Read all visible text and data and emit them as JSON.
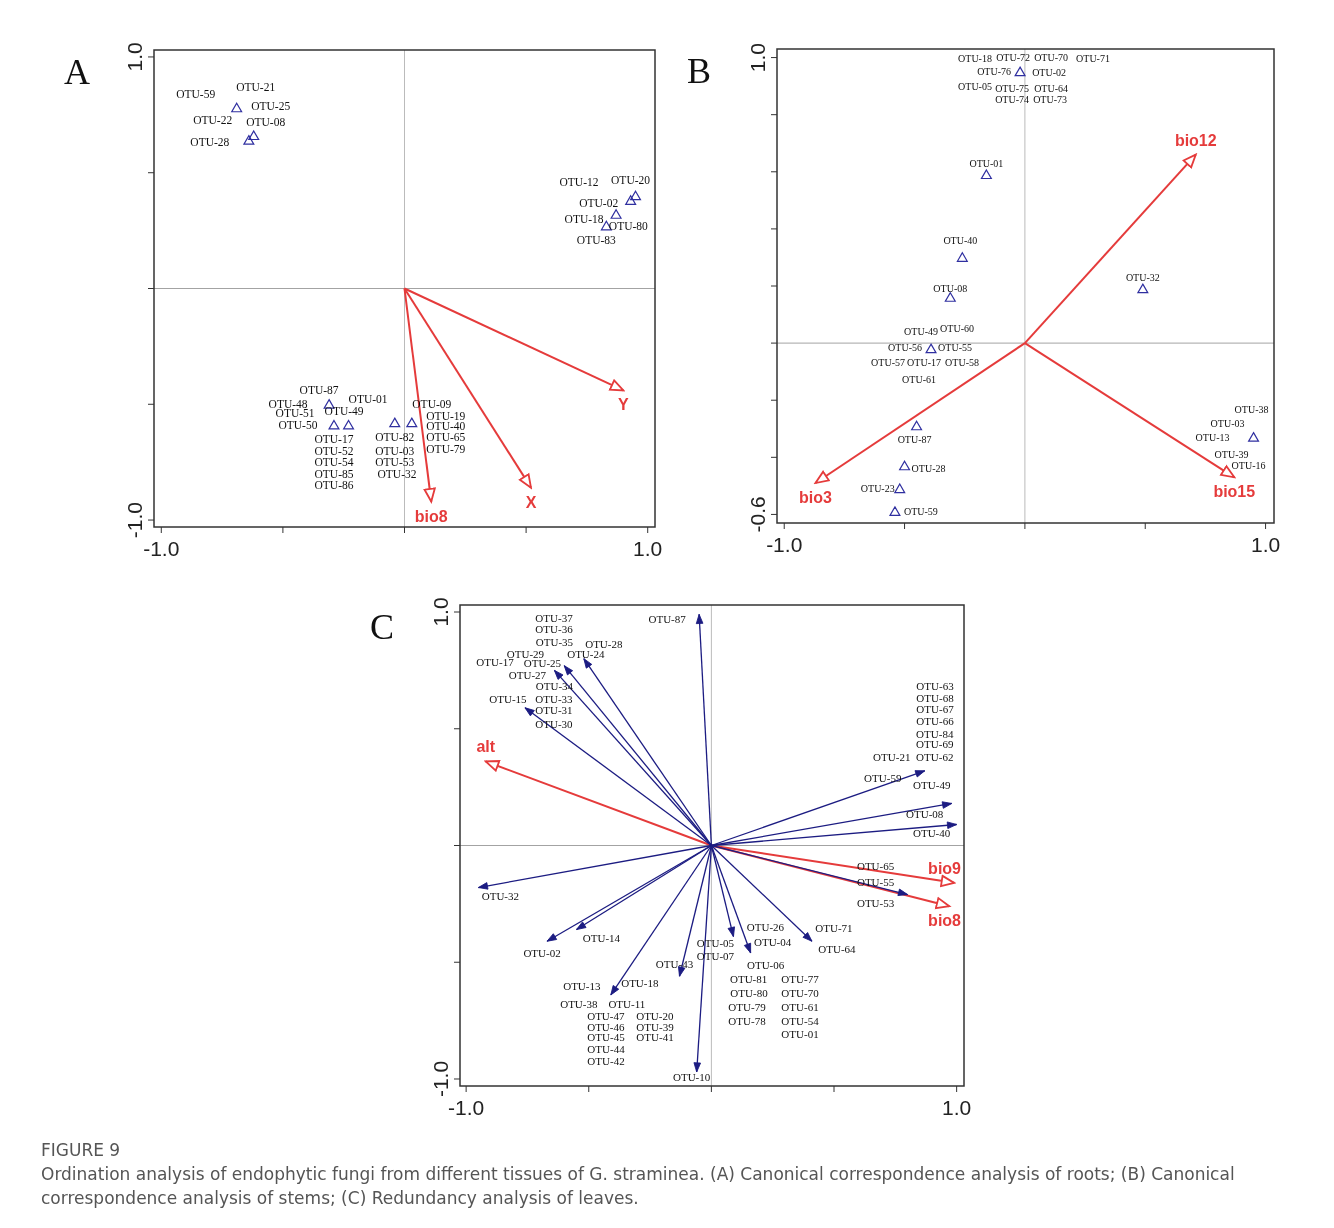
{
  "chart_data": [
    {
      "type": "scatter",
      "title": "A",
      "xlim": [
        -1.03,
        1.03
      ],
      "ylim": [
        -1.03,
        1.03
      ],
      "xticks": [
        {
          "value": -1,
          "label": "-1.0"
        },
        {
          "value": -0.5,
          "label": null
        },
        {
          "value": 0,
          "label": null
        },
        {
          "value": 0.5,
          "label": null
        },
        {
          "value": 1,
          "label": "1.0"
        }
      ],
      "yticks": [
        {
          "value": -1,
          "label": "-1.0"
        },
        {
          "value": -0.5,
          "label": null
        },
        {
          "value": 0,
          "label": null
        },
        {
          "value": 0.5,
          "label": null
        },
        {
          "value": 1,
          "label": "1.0"
        }
      ],
      "ref_lines": [
        {
          "axis": "x",
          "value": 0,
          "color": "#bbbbbb"
        },
        {
          "axis": "y",
          "value": 0,
          "color": "#a3a3a3"
        }
      ],
      "series": [
        {
          "marker": "triangle",
          "color": "#2f2fa0",
          "x": [
            -0.69,
            -0.62,
            -0.64,
            0.95,
            0.93,
            0.87,
            0.83,
            -0.31,
            -0.29,
            -0.23,
            -0.04,
            0.03
          ],
          "values": [
            0.78,
            0.66,
            0.64,
            0.4,
            0.38,
            0.32,
            0.27,
            -0.5,
            -0.59,
            -0.59,
            -0.58,
            -0.58
          ]
        },
        {
          "type": "line",
          "name": "Y",
          "color": "#e53b3b",
          "x": [
            0,
            0.9
          ],
          "values": [
            0,
            -0.44
          ]
        },
        {
          "type": "line",
          "name": "X",
          "color": "#e53b3b",
          "x": [
            0,
            0.52
          ],
          "values": [
            0,
            -0.86
          ]
        },
        {
          "type": "line",
          "name": "bio8",
          "color": "#e53b3b",
          "x": [
            0,
            0.11
          ],
          "values": [
            0,
            -0.92
          ]
        }
      ],
      "annotations": [
        {
          "text": "OTU-59",
          "x": -0.69,
          "y": 0.78
        },
        {
          "text": "OTU-21",
          "x": -0.69,
          "y": 0.78
        },
        {
          "text": "OTU-25",
          "x": -0.69,
          "y": 0.78
        },
        {
          "text": "OTU-22",
          "x": -0.69,
          "y": 0.78
        },
        {
          "text": "OTU-08",
          "x": -0.62,
          "y": 0.66
        },
        {
          "text": "OTU-28",
          "x": -0.64,
          "y": 0.64
        },
        "OTU-12",
        {
          "text": "OTU-20",
          "x": 0.95,
          "y": 0.4
        },
        {
          "text": "OTU-02",
          "x": 0.93,
          "y": 0.38
        },
        {
          "text": "OTU-18",
          "x": 0.87,
          "y": 0.32
        },
        {
          "text": "OTU-80",
          "x": 0.83,
          "y": 0.27
        },
        {
          "text": "OTU-83",
          "x": 0.83,
          "y": 0.27
        },
        {
          "text": "OTU-87",
          "x": -0.31,
          "y": -0.5
        },
        {
          "text": "OTU-48",
          "x": -0.31,
          "y": -0.5
        },
        {
          "text": "OTU-01",
          "x": -0.31,
          "y": -0.5
        },
        {
          "text": "OTU-51",
          "x": -0.31,
          "y": -0.5
        },
        {
          "text": "OTU-49",
          "x": -0.31,
          "y": -0.5
        },
        {
          "text": "OTU-50",
          "x": -0.29,
          "y": -0.59
        },
        {
          "text": "OTU-09",
          "x": 0.03,
          "y": -0.58
        },
        {
          "text": "OTU-19",
          "x": 0.03,
          "y": -0.58
        },
        {
          "text": "OTU-40",
          "x": 0.03,
          "y": -0.58
        },
        {
          "text": "OTU-82",
          "x": -0.04,
          "y": -0.58
        },
        {
          "text": "OTU-65",
          "x": 0.03,
          "y": -0.58
        },
        {
          "text": "OTU-17",
          "x": -0.29,
          "y": -0.59
        },
        {
          "text": "OTU-52",
          "x": -0.29,
          "y": -0.59
        },
        {
          "text": "OTU-03",
          "x": -0.04,
          "y": -0.58
        },
        {
          "text": "OTU-79",
          "x": 0.03,
          "y": -0.58
        },
        {
          "text": "OTU-54",
          "x": -0.29,
          "y": -0.59
        },
        {
          "text": "OTU-53",
          "x": -0.04,
          "y": -0.58
        },
        "OTU-85",
        "OTU-32",
        "OTU-86"
      ]
    },
    {
      "type": "scatter",
      "title": "B",
      "xlim": [
        -1.03,
        1.035
      ],
      "ylim": [
        -0.63,
        1.03
      ],
      "xticks": [
        {
          "value": -1,
          "label": "-1.0"
        },
        {
          "value": -0.5,
          "label": null
        },
        {
          "value": 0,
          "label": null
        },
        {
          "value": 0.5,
          "label": null
        },
        {
          "value": 1,
          "label": "1.0"
        }
      ],
      "yticks": [
        {
          "value": -0.6,
          "label": "-0.6"
        },
        {
          "value": -0.4,
          "label": null
        },
        {
          "value": -0.2,
          "label": null
        },
        {
          "value": 0,
          "label": null
        },
        {
          "value": 0.2,
          "label": null
        },
        {
          "value": 0.4,
          "label": null
        },
        {
          "value": 0.6,
          "label": null
        },
        {
          "value": 0.8,
          "label": null
        },
        {
          "value": 1,
          "label": "1.0"
        }
      ],
      "ref_lines": [
        {
          "axis": "x",
          "value": 0,
          "color": "#bbbbbb"
        },
        {
          "axis": "y",
          "value": 0,
          "color": "#a3a3a3"
        }
      ],
      "series": [
        {
          "marker": "triangle",
          "color": "#2f2fa0",
          "x": [
            -0.02,
            -0.16,
            -0.26,
            -0.31,
            0.49,
            -0.39,
            -0.45,
            0.95,
            -0.5,
            -0.52,
            -0.54
          ],
          "values": [
            0.95,
            0.59,
            0.3,
            0.16,
            0.19,
            -0.02,
            -0.29,
            -0.33,
            -0.43,
            -0.51,
            -0.59
          ]
        },
        {
          "type": "line",
          "name": "bio12",
          "color": "#e53b3b",
          "x": [
            0,
            0.71
          ],
          "values": [
            0,
            0.66
          ]
        },
        {
          "type": "line",
          "name": "bio3",
          "color": "#e53b3b",
          "x": [
            0,
            -0.87
          ],
          "values": [
            0,
            -0.49
          ]
        },
        {
          "type": "line",
          "name": "bio15",
          "color": "#e53b3b",
          "x": [
            0,
            0.87
          ],
          "values": [
            0,
            -0.47
          ]
        }
      ],
      "annotations": [
        "OTU-18",
        {
          "text": "OTU-72",
          "x": -0.02,
          "y": 0.95
        },
        {
          "text": "OTU-70",
          "x": -0.02,
          "y": 0.95
        },
        "OTU-71",
        {
          "text": "OTU-76",
          "x": -0.02,
          "y": 0.95
        },
        {
          "text": "OTU-02",
          "x": -0.02,
          "y": 0.95
        },
        "OTU-05",
        {
          "text": "OTU-75",
          "x": -0.02,
          "y": 0.95
        },
        {
          "text": "OTU-64",
          "x": -0.02,
          "y": 0.95
        },
        {
          "text": "OTU-74",
          "x": -0.02,
          "y": 0.95
        },
        {
          "text": "OTU-73",
          "x": -0.02,
          "y": 0.95
        },
        {
          "text": "OTU-01",
          "x": -0.16,
          "y": 0.59
        },
        {
          "text": "OTU-40",
          "x": -0.26,
          "y": 0.3
        },
        {
          "text": "OTU-32",
          "x": 0.49,
          "y": 0.19
        },
        {
          "text": "OTU-08",
          "x": -0.31,
          "y": 0.16
        },
        {
          "text": "OTU-49",
          "x": -0.39,
          "y": -0.02
        },
        {
          "text": "OTU-60",
          "x": -0.39,
          "y": -0.02
        },
        {
          "text": "OTU-56",
          "x": -0.39,
          "y": -0.02
        },
        {
          "text": "OTU-55",
          "x": -0.39,
          "y": -0.02
        },
        {
          "text": "OTU-57",
          "x": -0.39,
          "y": -0.02
        },
        {
          "text": "OTU-17",
          "x": -0.39,
          "y": -0.02
        },
        {
          "text": "OTU-58",
          "x": -0.39,
          "y": -0.02
        },
        {
          "text": "OTU-61",
          "x": -0.39,
          "y": -0.02
        },
        {
          "text": "OTU-87",
          "x": -0.45,
          "y": -0.29
        },
        {
          "text": "OTU-28",
          "x": -0.5,
          "y": -0.43
        },
        {
          "text": "OTU-23",
          "x": -0.52,
          "y": -0.51
        },
        {
          "text": "OTU-59",
          "x": -0.54,
          "y": -0.59
        },
        {
          "text": "OTU-38",
          "x": 0.95,
          "y": -0.33
        },
        {
          "text": "OTU-03",
          "x": 0.95,
          "y": -0.33
        },
        {
          "text": "OTU-13",
          "x": 0.95,
          "y": -0.33
        },
        {
          "text": "OTU-39",
          "x": 0.95,
          "y": -0.33
        },
        {
          "text": "OTU-16",
          "x": 0.95,
          "y": -0.33
        }
      ]
    },
    {
      "type": "line",
      "title": "C",
      "xlim": [
        -1.025,
        1.03
      ],
      "ylim": [
        -1.03,
        1.03
      ],
      "xticks": [
        {
          "value": -1,
          "label": "-1.0"
        },
        {
          "value": -0.5,
          "label": null
        },
        {
          "value": 0,
          "label": null
        },
        {
          "value": 0.5,
          "label": null
        },
        {
          "value": 1,
          "label": "1.0"
        }
      ],
      "yticks": [
        {
          "value": -1,
          "label": "-1.0"
        },
        {
          "value": -0.5,
          "label": null
        },
        {
          "value": 0,
          "label": null
        },
        {
          "value": 0.5,
          "label": null
        },
        {
          "value": 1,
          "label": "1.0"
        }
      ],
      "ref_lines": [
        {
          "axis": "x",
          "value": 0,
          "color": "#bbbbbb"
        },
        {
          "axis": "y",
          "value": 0,
          "color": "#a3a3a3"
        }
      ],
      "series": [
        {
          "name": "alt",
          "color": "#e53b3b",
          "x": [
            0,
            -0.92
          ],
          "values": [
            0,
            0.36
          ]
        },
        {
          "name": "bio9",
          "color": "#e53b3b",
          "x": [
            0,
            0.99
          ],
          "values": [
            0,
            -0.16
          ]
        },
        {
          "name": "bio8",
          "color": "#e53b3b",
          "x": [
            0,
            0.97
          ],
          "values": [
            0,
            -0.26
          ]
        },
        {
          "color": "#1c1c82",
          "x": [
            0,
            -0.05
          ],
          "values": [
            0,
            0.99
          ]
        },
        {
          "color": "#1c1c82",
          "x": [
            0,
            -0.6
          ],
          "values": [
            0,
            0.77
          ]
        },
        {
          "color": "#1c1c82",
          "x": [
            0,
            -0.64
          ],
          "values": [
            0,
            0.75
          ]
        },
        {
          "color": "#1c1c82",
          "x": [
            0,
            -0.52
          ],
          "values": [
            0,
            0.8
          ]
        },
        {
          "color": "#1c1c82",
          "x": [
            0,
            -0.76
          ],
          "values": [
            0,
            0.59
          ]
        },
        {
          "color": "#1c1c82",
          "x": [
            0,
            -0.95
          ],
          "values": [
            0,
            -0.18
          ]
        },
        {
          "color": "#1c1c82",
          "x": [
            0,
            -0.67
          ],
          "values": [
            0,
            -0.41
          ]
        },
        {
          "color": "#1c1c82",
          "x": [
            0,
            -0.55
          ],
          "values": [
            0,
            -0.36
          ]
        },
        {
          "color": "#1c1c82",
          "x": [
            0,
            -0.41
          ],
          "values": [
            0,
            -0.64
          ]
        },
        {
          "color": "#1c1c82",
          "x": [
            0,
            -0.13
          ],
          "values": [
            0,
            -0.56
          ]
        },
        {
          "color": "#1c1c82",
          "x": [
            0,
            -0.06
          ],
          "values": [
            0,
            -0.97
          ]
        },
        {
          "color": "#1c1c82",
          "x": [
            0,
            0.87
          ],
          "values": [
            0,
            0.32
          ]
        },
        {
          "color": "#1c1c82",
          "x": [
            0,
            0.98
          ],
          "values": [
            0,
            0.18
          ]
        },
        {
          "color": "#1c1c82",
          "x": [
            0,
            1.0
          ],
          "values": [
            0,
            0.09
          ]
        },
        {
          "color": "#1c1c82",
          "x": [
            0,
            0.8
          ],
          "values": [
            0,
            -0.21
          ]
        },
        {
          "color": "#1c1c82",
          "x": [
            0,
            0.41
          ],
          "values": [
            0,
            -0.41
          ]
        },
        {
          "color": "#1c1c82",
          "x": [
            0,
            0.09
          ],
          "values": [
            0,
            -0.39
          ]
        },
        {
          "color": "#1c1c82",
          "x": [
            0,
            0.16
          ],
          "values": [
            0,
            -0.46
          ]
        }
      ],
      "annotations": [
        "OTU-37",
        "OTU-36",
        {
          "text": "OTU-35",
          "x": -0.64,
          "y": 0.75
        },
        {
          "text": "OTU-28",
          "x": -0.52,
          "y": 0.8
        },
        {
          "text": "OTU-29",
          "x": -0.64,
          "y": 0.75
        },
        {
          "text": "OTU-24",
          "x": -0.52,
          "y": 0.8
        },
        "OTU-17",
        {
          "text": "OTU-25",
          "x": -0.64,
          "y": 0.75
        },
        {
          "text": "OTU-27",
          "x": -0.64,
          "y": 0.75
        },
        {
          "text": "OTU-34",
          "x": -0.64,
          "y": 0.75
        },
        {
          "text": "OTU-15",
          "x": -0.76,
          "y": 0.59
        },
        {
          "text": "OTU-33",
          "x": -0.76,
          "y": 0.59
        },
        {
          "text": "OTU-31",
          "x": -0.76,
          "y": 0.59
        },
        {
          "text": "OTU-30",
          "x": -0.76,
          "y": 0.59
        },
        {
          "text": "OTU-87",
          "x": -0.05,
          "y": 0.99
        },
        {
          "text": "OTU-32",
          "x": -0.95,
          "y": -0.18
        },
        {
          "text": "OTU-14",
          "x": -0.55,
          "y": -0.36
        },
        {
          "text": "OTU-02",
          "x": -0.67,
          "y": -0.41
        },
        {
          "text": "OTU-43",
          "x": -0.13,
          "y": -0.56
        },
        {
          "text": "OTU-13",
          "x": -0.41,
          "y": -0.64
        },
        {
          "text": "OTU-18",
          "x": -0.41,
          "y": -0.64
        },
        {
          "text": "OTU-38",
          "x": -0.41,
          "y": -0.64
        },
        {
          "text": "OTU-11",
          "x": -0.41,
          "y": -0.64
        },
        {
          "text": "OTU-47",
          "x": -0.41,
          "y": -0.64
        },
        {
          "text": "OTU-20",
          "x": -0.41,
          "y": -0.64
        },
        {
          "text": "OTU-46",
          "x": -0.41,
          "y": -0.64
        },
        "OTU-39",
        "OTU-45",
        "OTU-41",
        "OTU-44",
        "OTU-42",
        {
          "text": "OTU-10",
          "x": -0.06,
          "y": -0.97
        },
        "OTU-63",
        "OTU-68",
        "OTU-67",
        "OTU-66",
        {
          "text": "OTU-84",
          "x": 0.87,
          "y": 0.32
        },
        {
          "text": "OTU-69",
          "x": 0.87,
          "y": 0.32
        },
        {
          "text": "OTU-21",
          "x": 0.87,
          "y": 0.32
        },
        {
          "text": "OTU-62",
          "x": 0.87,
          "y": 0.32
        },
        {
          "text": "OTU-59",
          "x": 0.87,
          "y": 0.32
        },
        {
          "text": "OTU-49",
          "x": 0.87,
          "y": 0.32
        },
        {
          "text": "OTU-08",
          "x": 0.98,
          "y": 0.18
        },
        {
          "text": "OTU-40",
          "x": 1.0,
          "y": 0.09
        },
        {
          "text": "OTU-65",
          "x": 0.8,
          "y": -0.21
        },
        {
          "text": "OTU-55",
          "x": 0.8,
          "y": -0.21
        },
        {
          "text": "OTU-53",
          "x": 0.8,
          "y": -0.21
        },
        {
          "text": "OTU-26",
          "x": 0.09,
          "y": -0.39
        },
        {
          "text": "OTU-71",
          "x": 0.41,
          "y": -0.41
        },
        {
          "text": "OTU-05",
          "x": 0.09,
          "y": -0.39
        },
        {
          "text": "OTU-04",
          "x": 0.16,
          "y": -0.46
        },
        {
          "text": "OTU-64",
          "x": 0.41,
          "y": -0.41
        },
        {
          "text": "OTU-07",
          "x": 0.09,
          "y": -0.39
        },
        {
          "text": "OTU-06",
          "x": 0.16,
          "y": -0.46
        },
        {
          "text": "OTU-81",
          "x": 0.16,
          "y": -0.46
        },
        "OTU-77",
        "OTU-80",
        "OTU-70",
        "OTU-79",
        "OTU-61",
        "OTU-78",
        "OTU-54",
        "OTU-01",
        "FIGURE 9",
        "Ordination analysis of endophytic fungi from different tissues of G. straminea. (A) Canonical correspondence analysis of roots; (B) Canonical correspondence analysis of stems; (C) Redundancy analysis of leaves."
      ]
    }
  ]
}
